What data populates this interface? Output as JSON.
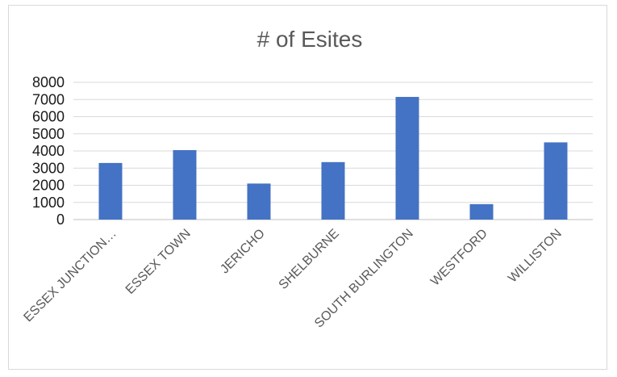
{
  "chart_data": {
    "type": "bar",
    "title": "# of Esites",
    "categories": [
      "ESSEX JUNCTION…",
      "ESSEX TOWN",
      "JERICHO",
      "SHELBURNE",
      "SOUTH BURLINGTON",
      "WESTFORD",
      "WILLISTON"
    ],
    "values": [
      3300,
      4050,
      2100,
      3350,
      7150,
      900,
      4500
    ],
    "ylim": [
      0,
      8000
    ],
    "yticks": [
      0,
      1000,
      2000,
      3000,
      4000,
      5000,
      6000,
      7000,
      8000
    ],
    "grid": true,
    "legend": "none",
    "colors": {
      "bar": "#4472c4",
      "grid": "#d9d9d9",
      "axis": "#bfbfbf"
    }
  }
}
